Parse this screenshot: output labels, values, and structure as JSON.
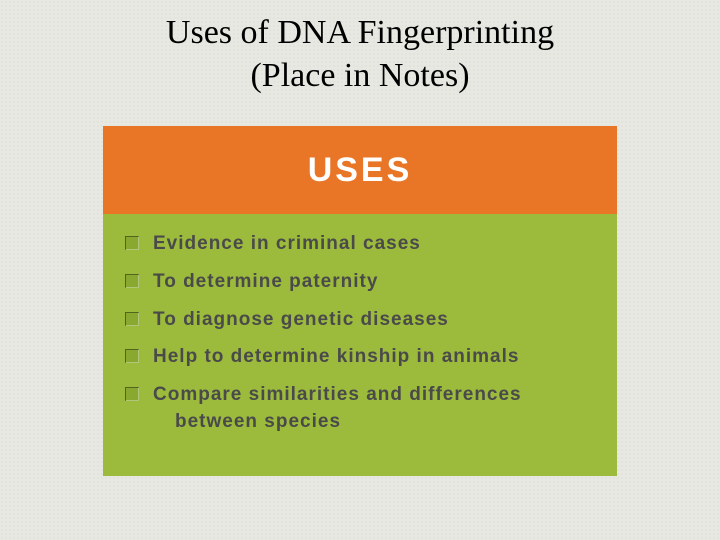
{
  "slide": {
    "title_line1": "Uses of DNA Fingerprinting",
    "title_line2": "(Place in Notes)",
    "title_fontsize": 34,
    "title_color": "#000000",
    "background_color": "#e8e8e3"
  },
  "panel": {
    "container_bg": "#58595b",
    "header": {
      "bg": "#e97627",
      "text": "USES",
      "text_color": "#ffffff",
      "fontsize": 34,
      "letter_spacing": 3,
      "font_weight": 800
    },
    "body": {
      "bg": "#9cbb3c",
      "bullet_color": "#88a830",
      "text_color": "#4a4a4a",
      "fontsize": 19,
      "letter_spacing": 1,
      "font_weight": 700,
      "items": [
        {
          "line1": "Evidence in criminal cases",
          "line2": ""
        },
        {
          "line1": "To determine paternity",
          "line2": ""
        },
        {
          "line1": "To diagnose genetic diseases",
          "line2": ""
        },
        {
          "line1": "Help to determine kinship in animals",
          "line2": ""
        },
        {
          "line1": "Compare similarities and differences",
          "line2": "between species"
        }
      ]
    }
  }
}
